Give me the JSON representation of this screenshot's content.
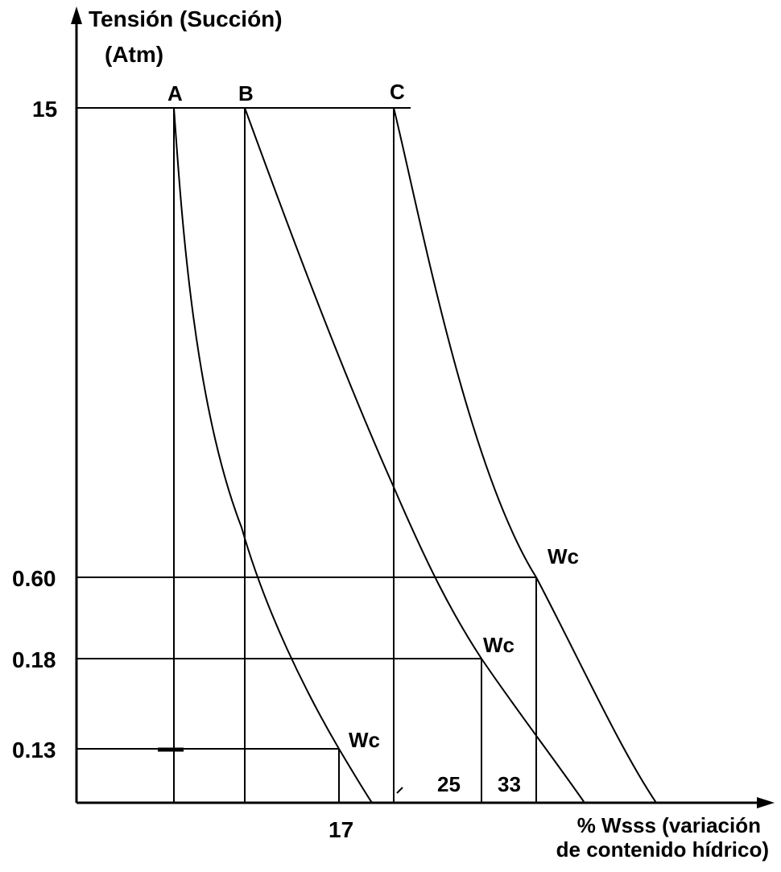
{
  "chart_data": {
    "type": "line",
    "ylabel_line1": "Tensión (Succión)",
    "ylabel_line2": "(Atm)",
    "xlabel_line1": "% Wsss (variación",
    "xlabel_line2": "de contenido hídrico)",
    "y_ticks": [
      "15",
      "0.60",
      "0.18",
      "0.13"
    ],
    "x_ticks": [
      "17",
      "25",
      "33"
    ],
    "curves": [
      {
        "name": "A",
        "wc_label": "Wc"
      },
      {
        "name": "B",
        "wc_label": "Wc"
      },
      {
        "name": "C",
        "wc_label": "Wc"
      }
    ],
    "colors": {
      "ink": "#000000",
      "background": "#ffffff"
    }
  }
}
